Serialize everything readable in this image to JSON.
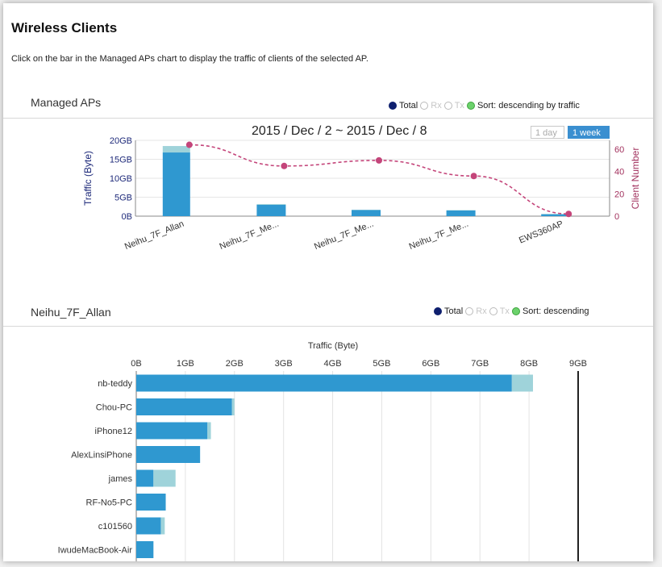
{
  "page": {
    "title": "Wireless Clients",
    "instruction": "Click on the bar in the Managed APs chart to display the traffic of clients of the selected AP."
  },
  "managed_aps": {
    "section_title": "Managed APs",
    "legend": {
      "total": "Total",
      "rx": "Rx",
      "tx": "Tx",
      "sort": "Sort: descending by traffic"
    },
    "range_title": "2015 / Dec / 2 ~ 2015 / Dec / 8",
    "range_buttons": {
      "day": "1 day",
      "week": "1 week",
      "selected": "1 week"
    }
  },
  "clients": {
    "section_title": "Neihu_7F_Allan",
    "legend": {
      "total": "Total",
      "rx": "Rx",
      "tx": "Tx",
      "sort": "Sort: descending"
    }
  },
  "colors": {
    "rx": "#2f98d0",
    "tx": "#9fd3da",
    "line": "#c4457a",
    "axis_left": "#1e2a7a",
    "axis_right": "#a2325e",
    "total_dot": "#0e1f6e",
    "sort_dot": "#6cd26c"
  },
  "chart_data": [
    {
      "type": "bar",
      "title": "2015 / Dec / 2 ~ 2015 / Dec / 8",
      "categories": [
        "Neihu_7F_Allan",
        "Neihu_7F_Me...",
        "Neihu_7F_Me...",
        "Neihu_7F_Me...",
        "EWS360AP"
      ],
      "y_ticks": [
        "0B",
        "5GB",
        "10GB",
        "15GB",
        "20GB"
      ],
      "y2_ticks": [
        "0",
        "20",
        "40",
        "60"
      ],
      "ylabel": "Traffic (Byte)",
      "y2label": "Client Number",
      "ylim": [
        0,
        20
      ],
      "y2lim": [
        0,
        68
      ],
      "series": [
        {
          "name": "Rx",
          "values": [
            16.8,
            3.0,
            1.6,
            1.5,
            0.5
          ]
        },
        {
          "name": "Tx",
          "values": [
            1.7,
            0.2,
            0.1,
            0.1,
            0.1
          ]
        },
        {
          "name": "Client Number",
          "type": "line",
          "values": [
            64,
            45,
            50,
            36,
            2
          ]
        }
      ],
      "grid": true
    },
    {
      "type": "bar",
      "orientation": "horizontal",
      "xlabel": "Traffic (Byte)",
      "x_ticks": [
        "0B",
        "1GB",
        "2GB",
        "3GB",
        "4GB",
        "5GB",
        "6GB",
        "7GB",
        "8GB",
        "9GB"
      ],
      "xlim": [
        0,
        9
      ],
      "categories": [
        "nb-teddy",
        "Chou-PC",
        "iPhone12",
        "AlexLinsiPhone",
        "james",
        "RF-No5-PC",
        "c101560",
        "IwudeMacBook-Air"
      ],
      "series": [
        {
          "name": "Rx",
          "values": [
            7.65,
            1.95,
            1.45,
            1.3,
            0.35,
            0.6,
            0.5,
            0.35
          ]
        },
        {
          "name": "Tx",
          "values": [
            0.43,
            0.05,
            0.07,
            0.0,
            0.45,
            0.0,
            0.08,
            0.0
          ]
        }
      ],
      "grid": true
    }
  ]
}
